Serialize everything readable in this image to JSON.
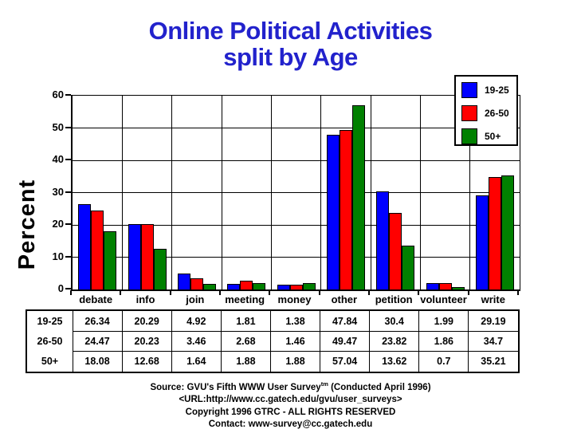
{
  "title": {
    "line1": "Online Political Activities",
    "line2": "split by Age",
    "color": "#2222cc"
  },
  "chart_data": {
    "type": "bar",
    "title": "Online Political Activities split by Age",
    "xlabel": "",
    "ylabel": "Percent",
    "ylim": [
      0,
      60
    ],
    "yticks": [
      0,
      10,
      20,
      30,
      40,
      50,
      60
    ],
    "grid": true,
    "legend_position": "top-right",
    "categories": [
      "debate",
      "info",
      "join",
      "meeting",
      "money",
      "other",
      "petition",
      "volunteer",
      "write"
    ],
    "series": [
      {
        "name": "19-25",
        "color": "#0000ff",
        "values": [
          26.34,
          20.29,
          4.92,
          1.81,
          1.38,
          47.84,
          30.4,
          1.99,
          29.19
        ]
      },
      {
        "name": "26-50",
        "color": "#ff0000",
        "values": [
          24.47,
          20.23,
          3.46,
          2.68,
          1.46,
          49.47,
          23.82,
          1.86,
          34.7
        ]
      },
      {
        "name": "50+",
        "color": "#008000",
        "values": [
          18.08,
          12.68,
          1.64,
          1.88,
          1.88,
          57.04,
          13.62,
          0.7,
          35.21
        ]
      }
    ]
  },
  "table": {
    "row_labels": [
      "19-25",
      "26-50",
      "50+"
    ],
    "columns": [
      "debate",
      "info",
      "join",
      "meeting",
      "money",
      "other",
      "petition",
      "volunteer",
      "write"
    ],
    "rows": [
      [
        "26.34",
        "20.29",
        "4.92",
        "1.81",
        "1.38",
        "47.84",
        "30.4",
        "1.99",
        "29.19"
      ],
      [
        "24.47",
        "20.23",
        "3.46",
        "2.68",
        "1.46",
        "49.47",
        "23.82",
        "1.86",
        "34.7"
      ],
      [
        "18.08",
        "12.68",
        "1.64",
        "1.88",
        "1.88",
        "57.04",
        "13.62",
        "0.7",
        "35.21"
      ]
    ]
  },
  "footer": {
    "line1_prefix": "Source: GVU's Fifth WWW User Survey",
    "line1_sup": "tm",
    "line1_suffix": " (Conducted April 1996)",
    "line2": "<URL:http://www.cc.gatech.edu/gvu/user_surveys>",
    "line3": "Copyright 1996 GTRC -  ALL RIGHTS RESERVED",
    "line4": "Contact: www-survey@cc.gatech.edu"
  }
}
